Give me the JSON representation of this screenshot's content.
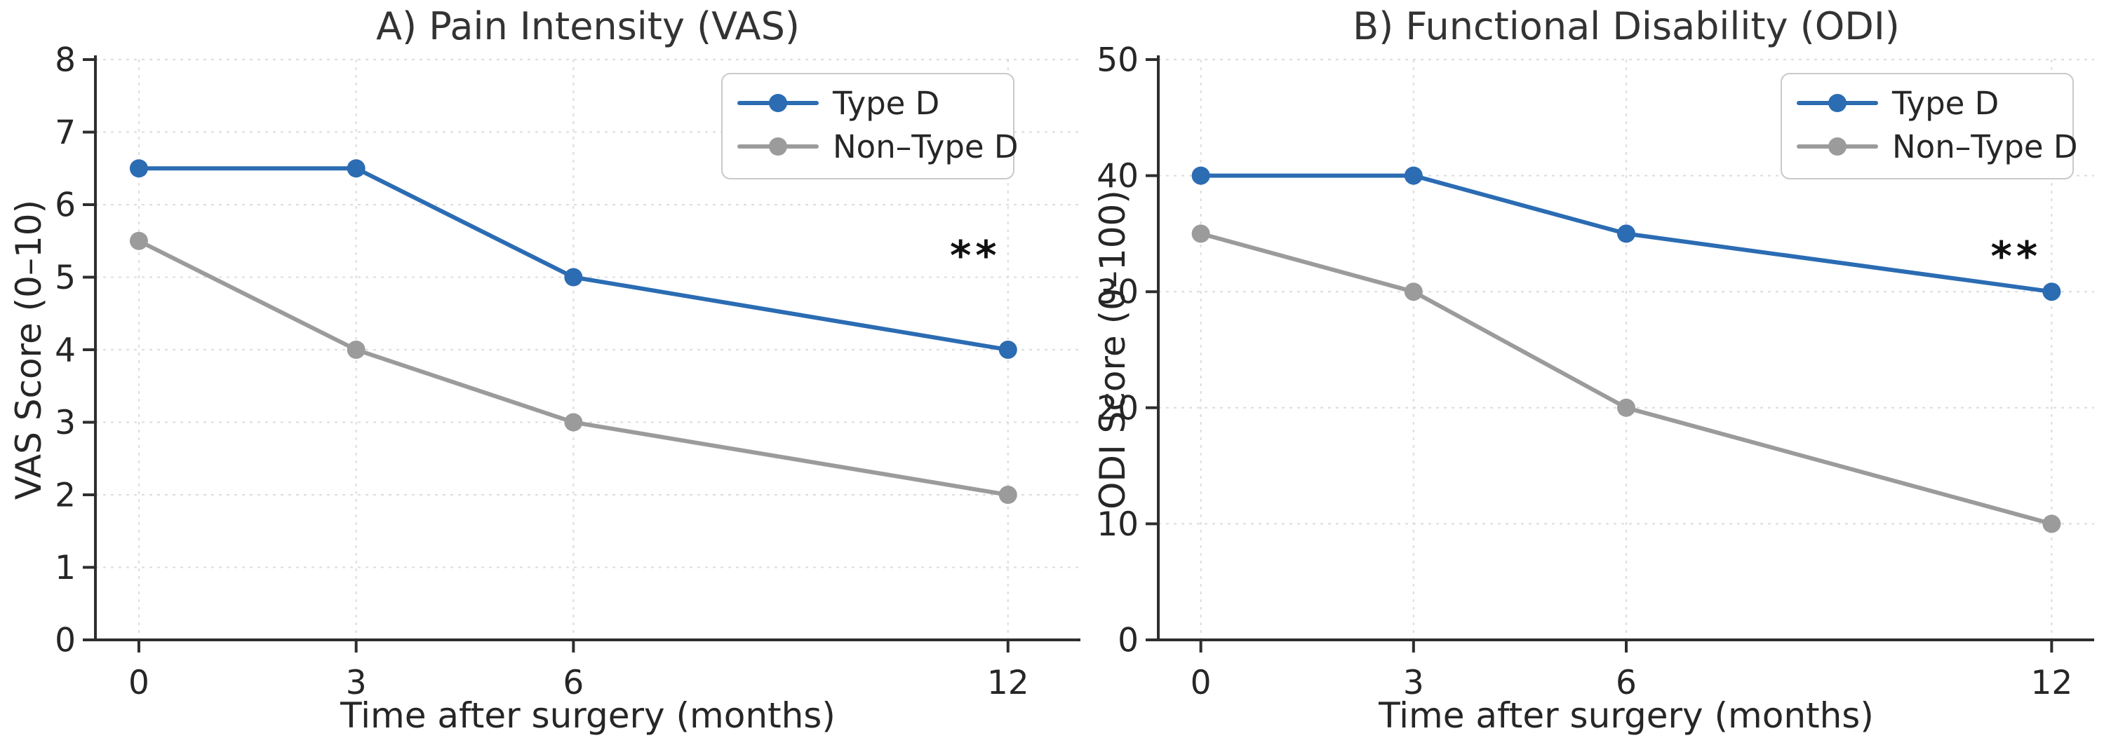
{
  "figure": {
    "background": "#ffffff",
    "text_color": "#262626",
    "title_color": "#333333",
    "grid_color": "#dcdcdc",
    "spine_color": "#2e2e2e",
    "legend_border_color": "#c9c9c9",
    "annotation_color": "#111111"
  },
  "chart_data": [
    {
      "type": "line",
      "panel": "A",
      "title": "A) Pain Intensity (VAS)",
      "xlabel": "Time after surgery (months)",
      "ylabel": "VAS Score (0–10)",
      "x": [
        0,
        3,
        6,
        12
      ],
      "xtick_labels": [
        "0",
        "3",
        "6",
        "12"
      ],
      "xlim": [
        -0.6,
        13.0
      ],
      "ylim": [
        0,
        8
      ],
      "yticks": [
        0,
        1,
        2,
        3,
        4,
        5,
        6,
        7,
        8
      ],
      "grid": true,
      "legend_position": "upper right",
      "series": [
        {
          "name": "Type D",
          "color": "#2b6cb3",
          "values": [
            6.5,
            6.5,
            5.0,
            4.0
          ]
        },
        {
          "name": "Non–Type D",
          "color": "#9b9b9b",
          "values": [
            5.5,
            4.0,
            3.0,
            2.0
          ]
        }
      ],
      "annotation": {
        "text": "**",
        "x": 11.55,
        "y": 5.5
      }
    },
    {
      "type": "line",
      "panel": "B",
      "title": "B) Functional Disability (ODI)",
      "xlabel": "Time after surgery (months)",
      "ylabel": "ODI Score (0–100)",
      "x": [
        0,
        3,
        6,
        12
      ],
      "xtick_labels": [
        "0",
        "3",
        "6",
        "12"
      ],
      "xlim": [
        -0.6,
        12.6
      ],
      "ylim": [
        0,
        50
      ],
      "yticks": [
        0,
        10,
        20,
        30,
        40,
        50
      ],
      "grid": true,
      "legend_position": "upper right",
      "series": [
        {
          "name": "Type D",
          "color": "#2b6cb3",
          "values": [
            40,
            40,
            35,
            30
          ]
        },
        {
          "name": "Non–Type D",
          "color": "#9b9b9b",
          "values": [
            35,
            30,
            20,
            10
          ]
        }
      ],
      "annotation": {
        "text": "**",
        "x": 11.5,
        "y": 34.3
      }
    }
  ]
}
